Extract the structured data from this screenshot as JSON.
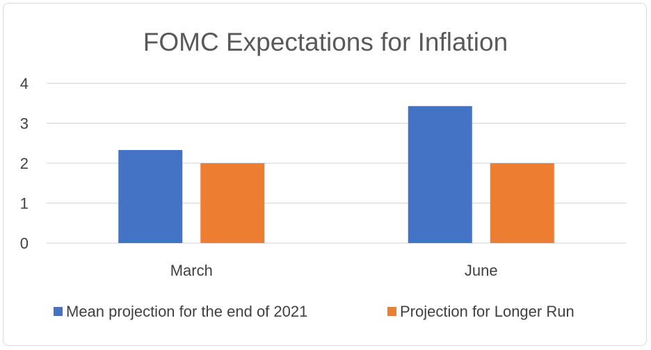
{
  "chart_data": {
    "type": "bar",
    "title": "FOMC Expectations for Inflation",
    "categories": [
      "March",
      "June"
    ],
    "series": [
      {
        "name": "Mean projection for the end of 2021",
        "color": "#4472c4",
        "values": [
          2.33,
          3.43
        ]
      },
      {
        "name": "Projection for Longer Run",
        "color": "#ed7d31",
        "values": [
          2.0,
          2.0
        ]
      }
    ],
    "ylim": [
      0,
      4
    ],
    "yticks": [
      "0",
      "1",
      "2",
      "3",
      "4"
    ],
    "grid": true,
    "legend_position": "bottom"
  }
}
